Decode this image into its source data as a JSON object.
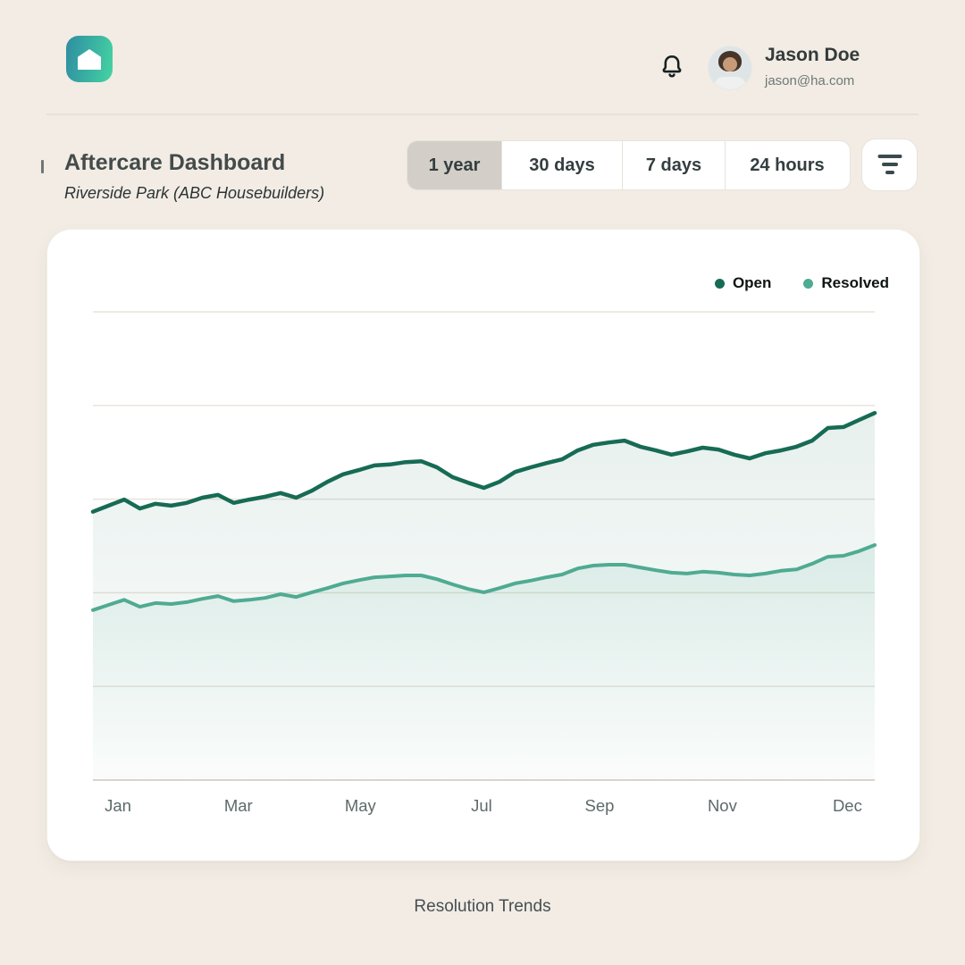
{
  "header": {
    "logo_icon": "home-icon",
    "bell_icon": "notification-bell",
    "user": {
      "name": "Jason Doe",
      "email": "jason@ha.com"
    }
  },
  "page_title": {
    "title": "Aftercare Dashboard",
    "subtitle": "Riverside Park (ABC Housebuilders)"
  },
  "time_filter": {
    "options": [
      {
        "label": "1 year",
        "selected": true
      },
      {
        "label": "30 days",
        "selected": false
      },
      {
        "label": "7 days",
        "selected": false
      },
      {
        "label": "24 hours",
        "selected": false
      }
    ],
    "filter_button_icon": "filter-lines"
  },
  "colors": {
    "page_background": "#f2ece4",
    "card_background": "#ffffff",
    "selected_segment": "#d3cfc8",
    "open_series": "#176b54",
    "resolved_series": "#4fab91",
    "gridline": "#e8e3db",
    "axis_line": "#d9d3ca"
  },
  "chart_data": {
    "type": "line",
    "title": "Resolution Trends",
    "xlabel": "",
    "ylabel": "",
    "x_tick_labels": [
      "Jan",
      "Mar",
      "May",
      "Jul",
      "Sep",
      "Nov",
      "Dec"
    ],
    "ylim": [
      0,
      100
    ],
    "gridline_values": [
      20,
      40,
      60,
      80,
      100
    ],
    "grid": "horizontal-only",
    "legend_position": "top-right",
    "series": [
      {
        "name": "Open",
        "color": "#176b54",
        "values": [
          57.3,
          58.6,
          59.9,
          58.0,
          59.0,
          58.6,
          59.2,
          60.3,
          60.9,
          59.2,
          59.9,
          60.5,
          61.3,
          60.3,
          61.8,
          63.7,
          65.3,
          66.2,
          67.2,
          67.4,
          67.9,
          68.1,
          66.8,
          64.7,
          63.5,
          62.4,
          63.7,
          65.8,
          66.8,
          67.7,
          68.5,
          70.4,
          71.6,
          72.1,
          72.5,
          71.2,
          70.4,
          69.5,
          70.2,
          71.0,
          70.6,
          69.5,
          68.7,
          69.8,
          70.4,
          71.2,
          72.5,
          75.2,
          75.4,
          76.9,
          78.4
        ]
      },
      {
        "name": "Resolved",
        "color": "#4fab91",
        "values": [
          36.3,
          37.4,
          38.5,
          37.0,
          37.8,
          37.6,
          38.0,
          38.7,
          39.3,
          38.2,
          38.5,
          38.9,
          39.7,
          39.1,
          40.1,
          41.0,
          42.0,
          42.7,
          43.3,
          43.5,
          43.7,
          43.7,
          42.9,
          41.8,
          40.8,
          40.1,
          41.0,
          42.0,
          42.6,
          43.3,
          43.9,
          45.2,
          45.8,
          46.0,
          46.0,
          45.4,
          44.8,
          44.3,
          44.1,
          44.5,
          44.3,
          43.9,
          43.7,
          44.1,
          44.7,
          45.0,
          46.2,
          47.7,
          47.9,
          48.9,
          50.2
        ]
      }
    ]
  },
  "footer": {
    "caption": "Resolution Trends"
  }
}
